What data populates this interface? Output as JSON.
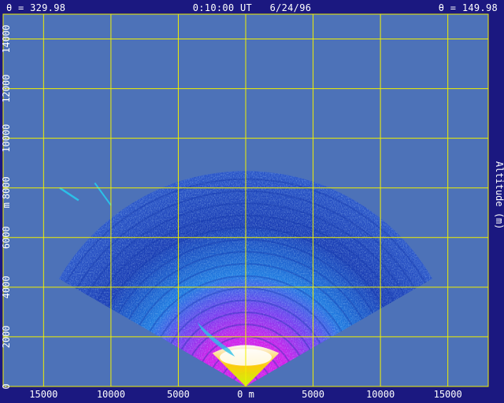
{
  "header": {
    "left": "θ = 329.98",
    "center": "0:10:00 UT   6/24/96",
    "right": "θ = 149.98"
  },
  "colors": {
    "frame": "#1b1880",
    "plot_background": "#4d72b8",
    "grid": "#f0f000",
    "text": "#ffffff"
  },
  "chart_data": {
    "type": "heatmap",
    "title": "",
    "xlabel": "0 m",
    "ylabel": "Altitude (m)",
    "y_unit_label": "m",
    "xlim": [
      -18000,
      18000
    ],
    "ylim": [
      0,
      15000
    ],
    "x_ticks": [
      -15000,
      -10000,
      -5000,
      0,
      5000,
      10000,
      15000
    ],
    "x_tick_labels": [
      "15000",
      "10000",
      "5000",
      "0 m",
      "5000",
      "10000",
      "15000"
    ],
    "y_ticks": [
      0,
      2000,
      4000,
      6000,
      8000,
      10000,
      12000,
      14000
    ],
    "y_tick_labels": [
      "0",
      "2000",
      "4000",
      "6000",
      "8000",
      "10000",
      "12000",
      "14000"
    ],
    "grid": true,
    "scan_sector_deg": [
      -60,
      60
    ],
    "max_range_m": 16000,
    "colormap": [
      "#1a3db5",
      "#1f7ae0",
      "#2bc0e8",
      "#7a3cf0",
      "#d21eea",
      "#ffffff",
      "#ffd400",
      "#c8ff00"
    ]
  }
}
